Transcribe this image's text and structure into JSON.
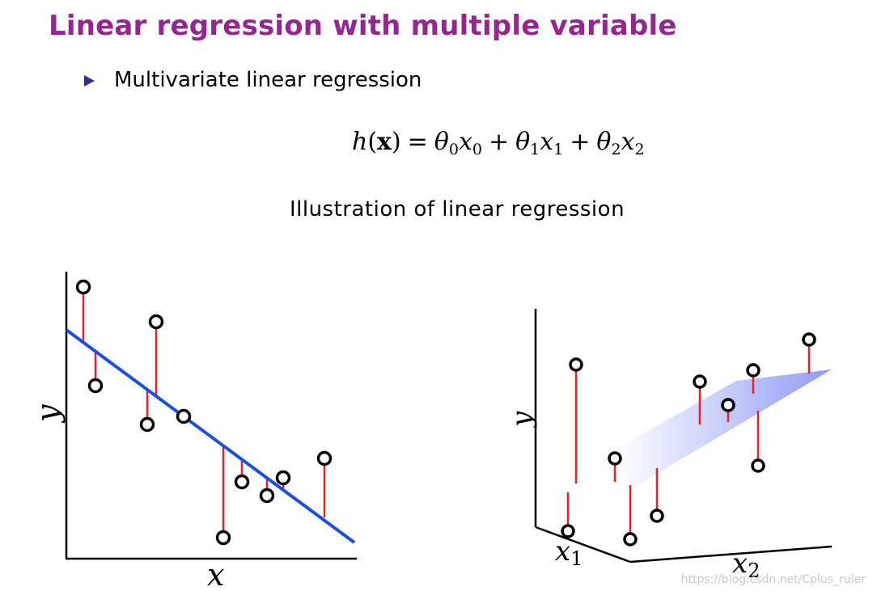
{
  "slide": {
    "title": "Linear regression with multiple variable",
    "bullet": "Multivariate linear regression",
    "figure_title": "Illustration of linear regression"
  },
  "formula": {
    "lhs": "h",
    "arg": "x",
    "equals": "=",
    "terms": [
      {
        "coef": "θ",
        "coef_sub": "0",
        "var": "x",
        "var_sub": "0"
      },
      {
        "coef": "θ",
        "coef_sub": "1",
        "var": "x",
        "var_sub": "1"
      },
      {
        "coef": "θ",
        "coef_sub": "2",
        "var": "x",
        "var_sub": "2"
      }
    ],
    "plus": "+"
  },
  "plot2d": {
    "xlabel": "x",
    "ylabel": "y"
  },
  "plot3d": {
    "ylabel": "y",
    "x1label": "x",
    "x1sub": "1",
    "x2label": "x",
    "x2sub": "2"
  },
  "colors": {
    "title": "#93278f",
    "bullet": "#2e3192",
    "fit_line": "#1a4fe0",
    "residual": "#e8202a",
    "plane": "#8f9bf5"
  },
  "watermark": "https://blog.csdn.net/Cplus_ruler"
}
